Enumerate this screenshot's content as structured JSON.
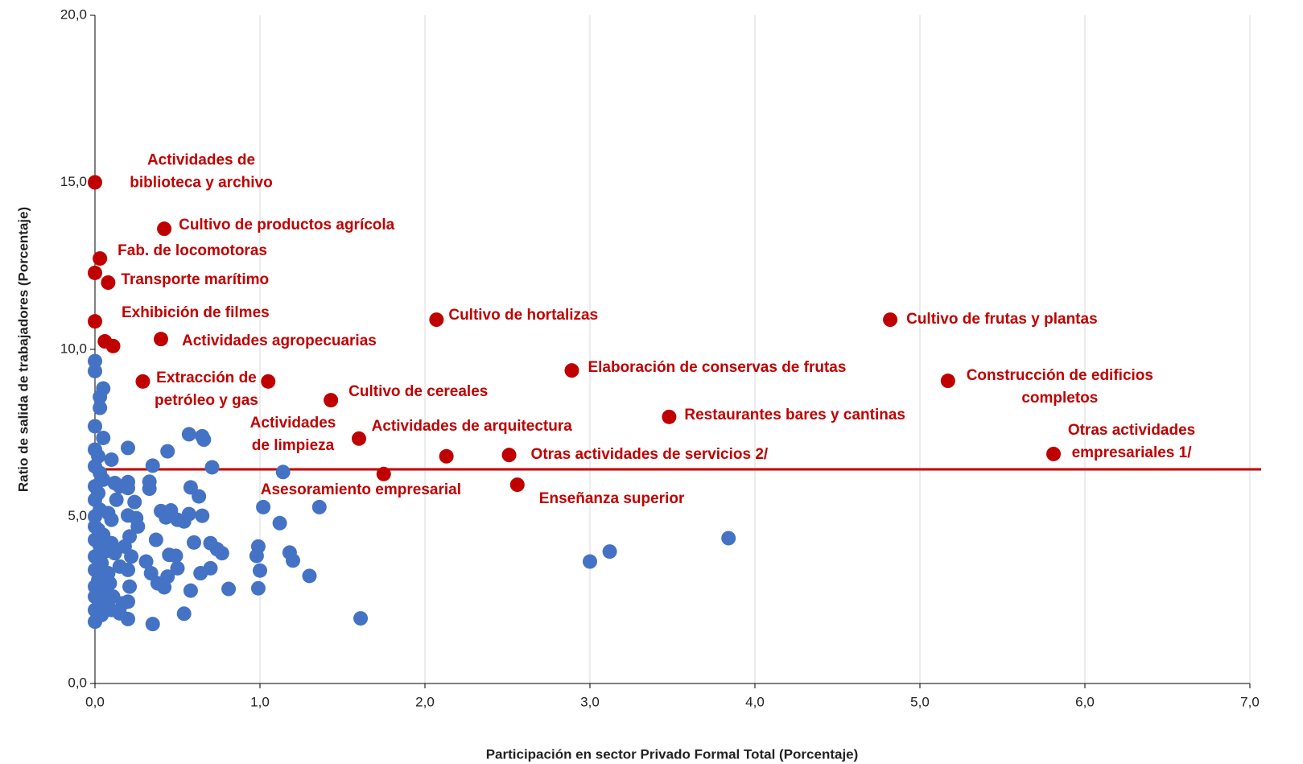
{
  "chart_data": {
    "type": "scatter",
    "x_label": "Participación en sector Privado Formal Total (Porcentaje)",
    "y_label": "Ratio de salida de trabajadores (Porcentaje)",
    "xlim": [
      0,
      7
    ],
    "ylim": [
      0,
      20
    ],
    "grid": true,
    "xticks": [
      {
        "value": 0,
        "label": "0,0"
      },
      {
        "value": 1,
        "label": "1,0"
      },
      {
        "value": 2,
        "label": "2,0"
      },
      {
        "value": 3,
        "label": "3,0"
      },
      {
        "value": 4,
        "label": "4,0"
      },
      {
        "value": 5,
        "label": "5,0"
      },
      {
        "value": 6,
        "label": "6,0"
      },
      {
        "value": 7,
        "label": "7,0"
      }
    ],
    "yticks": [
      {
        "value": 0,
        "label": "0,0"
      },
      {
        "value": 5,
        "label": "5,0"
      },
      {
        "value": 10,
        "label": "10,0"
      },
      {
        "value": 15,
        "label": "15,0"
      },
      {
        "value": 20,
        "label": "20,0"
      }
    ],
    "reference_line": {
      "value": 6.41,
      "color": "#c00000"
    },
    "series": [
      {
        "color": "#4472c4",
        "x": [
          1.61,
          3.0,
          3.12,
          3.84,
          1.36,
          1.02,
          1.14,
          1.12,
          0.99,
          0.98,
          1.0,
          0.99,
          1.18,
          1.2,
          1.3,
          0.81,
          0.77,
          0.74,
          0.7,
          0.7,
          0.64,
          0.58,
          0.54,
          0.35,
          0.2,
          0.71,
          0.66,
          0.65,
          0.57,
          0.44,
          0.35,
          0.33,
          0.33,
          0.2,
          0.2,
          0.2,
          0.58,
          0.63,
          0.65,
          0.57,
          0.54,
          0.46,
          0.4,
          0.43,
          0.5,
          0.37,
          0.6,
          0.45,
          0.49,
          0.5,
          0.44,
          0.38,
          0.42,
          0.34,
          0.31,
          0.26,
          0.25,
          0.24,
          0.2,
          0.21,
          0.18,
          0.22,
          0.2,
          0.15,
          0.21,
          0.2,
          0.17,
          0.15,
          0.1,
          0.1,
          0.12,
          0.15,
          0.13,
          0.05,
          0.03,
          0.03,
          0.0,
          0.0,
          0.0,
          0.05,
          0.0,
          0.02,
          0.0,
          0.03,
          0.05,
          0.0,
          0.02,
          0.0,
          0.03,
          0.0,
          0.0,
          0.02,
          0.05,
          0.0,
          0.03,
          0.06,
          0.0,
          0.04,
          0.0,
          0.08,
          0.02,
          0.0,
          0.05,
          0.0,
          0.03,
          0.07,
          0.0,
          0.04,
          0.0,
          0.1,
          0.12,
          0.09,
          0.11,
          0.08,
          0.1
        ],
        "y": [
          1.95,
          3.65,
          3.95,
          4.35,
          5.28,
          5.28,
          6.33,
          4.8,
          4.1,
          3.82,
          3.38,
          2.85,
          3.92,
          3.68,
          3.22,
          2.83,
          3.9,
          4.02,
          4.2,
          3.45,
          3.3,
          2.78,
          2.09,
          1.78,
          1.93,
          6.47,
          7.3,
          7.4,
          7.46,
          6.95,
          6.52,
          6.04,
          5.83,
          7.05,
          6.03,
          5.85,
          5.87,
          5.6,
          5.02,
          5.07,
          4.85,
          5.18,
          5.16,
          4.97,
          4.9,
          4.3,
          4.22,
          3.85,
          3.82,
          3.45,
          3.2,
          3.0,
          2.88,
          3.3,
          3.65,
          4.7,
          4.95,
          5.43,
          5.03,
          4.4,
          4.1,
          3.8,
          3.4,
          3.5,
          2.9,
          2.45,
          2.4,
          2.1,
          2.2,
          6.7,
          6.0,
          5.9,
          5.5,
          8.83,
          8.58,
          8.25,
          9.65,
          9.35,
          7.7,
          7.35,
          7.0,
          6.8,
          6.5,
          6.3,
          6.1,
          5.9,
          5.7,
          5.5,
          5.2,
          5.0,
          4.7,
          4.6,
          4.45,
          4.3,
          4.1,
          3.95,
          3.8,
          3.6,
          3.4,
          3.3,
          3.1,
          2.9,
          2.75,
          2.6,
          2.45,
          2.3,
          2.2,
          2.05,
          1.85,
          4.2,
          3.9,
          3.0,
          2.6,
          5.1,
          4.9
        ]
      },
      {
        "color": "#c00000",
        "x": [
          0.0,
          0.42,
          0.03,
          0.0,
          0.08,
          0.0,
          0.06,
          0.11,
          0.4,
          0.29,
          1.05,
          1.43,
          1.6,
          2.13,
          1.75,
          2.07,
          2.51,
          2.56,
          2.89,
          3.48,
          4.82,
          5.17,
          5.81
        ],
        "y": [
          15.0,
          13.61,
          12.72,
          12.29,
          12.0,
          10.84,
          10.24,
          10.1,
          10.31,
          9.04,
          9.04,
          8.48,
          7.33,
          6.8,
          6.27,
          10.89,
          6.84,
          5.95,
          9.37,
          7.98,
          10.89,
          9.06,
          6.87
        ],
        "labels": [
          [
            "Actividades de",
            "biblioteca y archivo"
          ],
          [
            "Cultivo de productos agrícola"
          ],
          [
            "Fab. de locomotoras"
          ],
          null,
          [
            "Transporte marítimo"
          ],
          [
            "Exhibición de filmes"
          ],
          null,
          null,
          [
            "Actividades agropecuarias"
          ],
          [
            "Extracción de",
            "petróleo y gas"
          ],
          null,
          [
            "Cultivo de cereales"
          ],
          [
            "Actividades",
            "de limpieza"
          ],
          [
            "Actividades de arquitectura"
          ],
          [
            "Asesoramiento empresarial"
          ],
          [
            "Cultivo de hortalizas"
          ],
          [
            "Otras actividades de servicios 2/"
          ],
          [
            "Enseñanza superior"
          ],
          [
            "Elaboración de conservas de frutas"
          ],
          [
            "Restaurantes bares y cantinas"
          ],
          [
            "Cultivo de frutas y plantas"
          ],
          [
            "Construcción de edificios",
            "completos"
          ],
          [
            "Otras actividades",
            "empresariales 1/"
          ]
        ]
      }
    ]
  }
}
